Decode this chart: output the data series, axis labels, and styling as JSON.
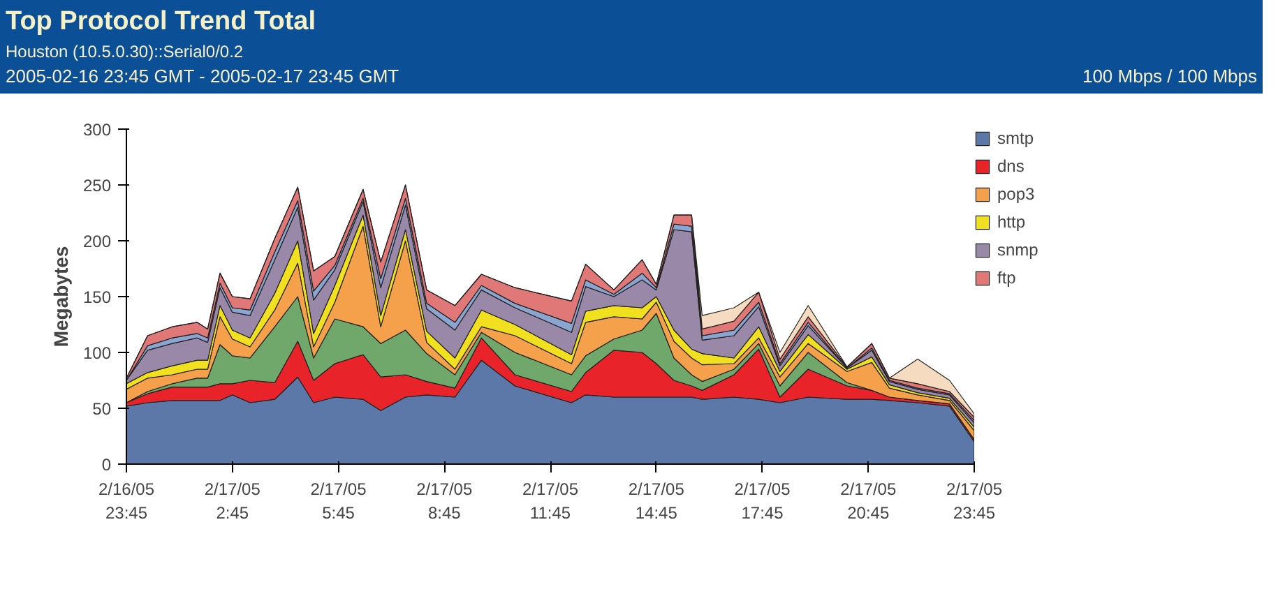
{
  "chart_data": {
    "type": "area",
    "stacked": true,
    "title": "Top Protocol Trend Total",
    "subtitle": "Houston (10.5.0.30)::Serial0/0.2",
    "annotations": [
      "2005-02-16 23:45 GMT - 2005-02-17 23:45 GMT",
      "100 Mbps / 100 Mbps"
    ],
    "ylabel": "Megabytes",
    "x": [
      "2005-02-16T23:45",
      "2005-02-17T00:21",
      "2005-02-17T01:03",
      "2005-02-17T01:45",
      "2005-02-17T02:03",
      "2005-02-17T02:24",
      "2005-02-17T02:45",
      "2005-02-17T03:15",
      "2005-02-17T03:57",
      "2005-02-17T04:36",
      "2005-02-17T05:03",
      "2005-02-17T05:39",
      "2005-02-17T06:27",
      "2005-02-17T06:57",
      "2005-02-17T07:39",
      "2005-02-17T08:15",
      "2005-02-17T09:03",
      "2005-02-17T09:48",
      "2005-02-17T10:45",
      "2005-02-17T12:21",
      "2005-02-17T12:45",
      "2005-02-17T13:33",
      "2005-02-17T14:21",
      "2005-02-17T14:45",
      "2005-02-17T15:15",
      "2005-02-17T15:45",
      "2005-02-17T16:03",
      "2005-02-17T16:57",
      "2005-02-17T17:39",
      "2005-02-17T18:15",
      "2005-02-17T19:03",
      "2005-02-17T20:09",
      "2005-02-17T20:51",
      "2005-02-17T21:21",
      "2005-02-17T22:09",
      "2005-02-17T23:03",
      "2005-02-17T23:45"
    ],
    "xlim": [
      "2005-02-16T23:45",
      "2005-02-17T23:45"
    ],
    "xticks": [
      {
        "value": "2005-02-16T23:45",
        "label": "2/16/05\n23:45"
      },
      {
        "value": "2005-02-17T02:45",
        "label": "2/17/05\n2:45"
      },
      {
        "value": "2005-02-17T05:45",
        "label": "2/17/05\n5:45"
      },
      {
        "value": "2005-02-17T08:45",
        "label": "2/17/05\n8:45"
      },
      {
        "value": "2005-02-17T11:45",
        "label": "2/17/05\n11:45"
      },
      {
        "value": "2005-02-17T14:45",
        "label": "2/17/05\n14:45"
      },
      {
        "value": "2005-02-17T17:45",
        "label": "2/17/05\n17:45"
      },
      {
        "value": "2005-02-17T20:45",
        "label": "2/17/05\n20:45"
      },
      {
        "value": "2005-02-17T23:45",
        "label": "2/17/05\n23:45"
      }
    ],
    "ylim": [
      0,
      300
    ],
    "yticks": [
      0,
      50,
      100,
      150,
      200,
      250,
      300
    ],
    "grid": false,
    "legend": "right",
    "series": [
      {
        "name": "smtp",
        "color": "#5b78a8",
        "values": [
          52,
          55,
          57,
          57,
          57,
          57,
          62,
          55,
          58,
          78,
          55,
          60,
          58,
          48,
          60,
          62,
          60,
          93,
          70,
          55,
          62,
          60,
          60,
          60,
          60,
          60,
          58,
          60,
          58,
          55,
          60,
          58,
          58,
          57,
          55,
          52,
          20
        ]
      },
      {
        "name": "dns",
        "color": "#e8242a",
        "values": [
          3,
          8,
          12,
          12,
          12,
          15,
          10,
          20,
          15,
          32,
          20,
          30,
          40,
          30,
          20,
          12,
          8,
          20,
          10,
          10,
          20,
          42,
          40,
          30,
          15,
          10,
          8,
          20,
          45,
          5,
          25,
          12,
          8,
          3,
          2,
          2,
          2
        ]
      },
      {
        "color": "#6fa86a",
        "values": [
          0,
          2,
          3,
          8,
          8,
          35,
          25,
          20,
          50,
          40,
          20,
          40,
          25,
          30,
          40,
          25,
          12,
          5,
          20,
          15,
          15,
          10,
          20,
          45,
          20,
          10,
          8,
          5,
          5,
          10,
          15,
          3,
          0,
          0,
          0,
          0,
          0
        ]
      },
      {
        "name": "pop3",
        "color": "#f5a04a",
        "values": [
          12,
          12,
          8,
          8,
          8,
          25,
          15,
          10,
          15,
          30,
          10,
          15,
          90,
          15,
          80,
          10,
          5,
          5,
          15,
          10,
          30,
          20,
          10,
          10,
          15,
          15,
          15,
          5,
          5,
          8,
          8,
          10,
          25,
          8,
          5,
          3,
          8
        ]
      },
      {
        "name": "http",
        "color": "#f0e020",
        "values": [
          5,
          5,
          8,
          8,
          8,
          10,
          8,
          8,
          15,
          20,
          12,
          15,
          10,
          10,
          10,
          10,
          10,
          15,
          10,
          8,
          10,
          10,
          10,
          5,
          10,
          8,
          10,
          5,
          10,
          5,
          8,
          2,
          5,
          3,
          2,
          2,
          3
        ]
      },
      {
        "name": "snmp",
        "color": "#9a88a8",
        "values": [
          3,
          20,
          20,
          20,
          16,
          16,
          16,
          20,
          30,
          30,
          30,
          14,
          12,
          25,
          22,
          20,
          25,
          18,
          15,
          20,
          22,
          8,
          25,
          6,
          90,
          105,
          12,
          20,
          18,
          5,
          8,
          1,
          6,
          3,
          3,
          3,
          4
        ]
      },
      {
        "color": "#8aa5d0",
        "values": [
          0,
          4,
          5,
          4,
          4,
          4,
          4,
          5,
          7,
          6,
          8,
          4,
          3,
          8,
          6,
          5,
          7,
          4,
          4,
          8,
          6,
          2,
          6,
          2,
          5,
          5,
          4,
          5,
          4,
          2,
          3,
          0,
          2,
          1,
          1,
          1,
          2
        ]
      },
      {
        "name": "ftp",
        "color": "#e07878",
        "values": [
          2,
          9,
          10,
          10,
          8,
          9,
          10,
          10,
          12,
          12,
          18,
          8,
          8,
          15,
          12,
          12,
          15,
          10,
          14,
          20,
          14,
          4,
          12,
          3,
          8,
          10,
          6,
          8,
          9,
          4,
          5,
          1,
          4,
          2,
          4,
          2,
          3
        ]
      },
      {
        "color": "#f5dcc0",
        "values": [
          0,
          0,
          0,
          0,
          0,
          0,
          0,
          0,
          0,
          0,
          0,
          0,
          0,
          0,
          0,
          0,
          0,
          0,
          0,
          0,
          0,
          0,
          0,
          0,
          0,
          0,
          12,
          12,
          0,
          6,
          10,
          0,
          0,
          0,
          22,
          10,
          3
        ]
      }
    ]
  }
}
